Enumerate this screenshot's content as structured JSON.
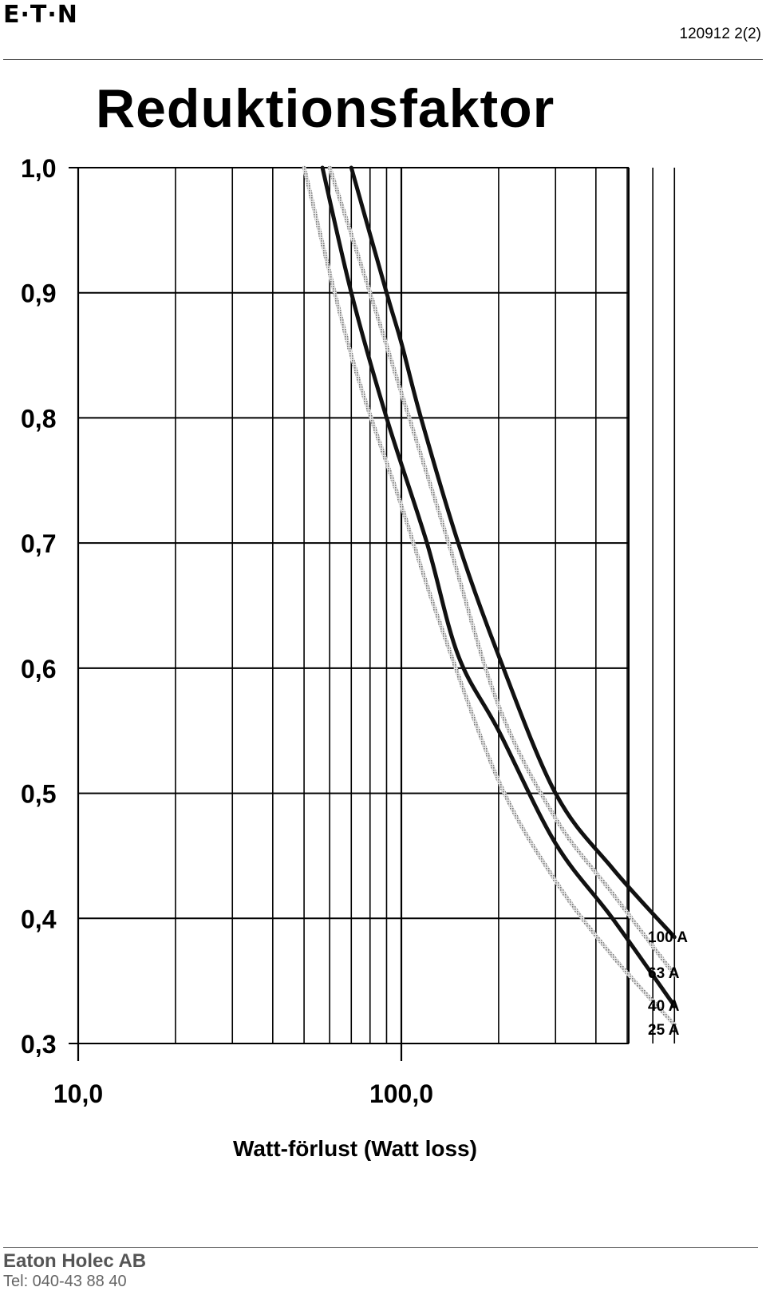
{
  "header": {
    "logo_text": "E∙T∙N",
    "document_number": "120912 2(2)"
  },
  "footer": {
    "company": "Eaton Holec AB",
    "phone": "Tel: 040-43 88 40"
  },
  "chart_data": {
    "type": "line",
    "title": "Reduktionsfaktor",
    "xlabel": "Watt-förlust (Watt loss)",
    "ylabel": "",
    "x_scale": "log",
    "xlim": [
      10,
      700
    ],
    "ylim": [
      0.3,
      1.0
    ],
    "x_ticks": [
      10,
      100
    ],
    "x_tick_labels": [
      "10,0",
      "100,0"
    ],
    "y_ticks": [
      1.0,
      0.9,
      0.8,
      0.7,
      0.6,
      0.5,
      0.4,
      0.3
    ],
    "y_tick_labels": [
      "1,0",
      "0,9",
      "0,8",
      "0,7",
      "0,6",
      "0,5",
      "0,4",
      "0,3"
    ],
    "grid": true,
    "legend_placement": "right (labels at line ends)",
    "series": [
      {
        "name": "100 A",
        "color": "#111111",
        "style": "solid",
        "x": [
          70,
          90,
          100,
          115,
          150,
          200,
          300,
          450,
          700
        ],
        "y": [
          1.0,
          0.9,
          0.86,
          0.8,
          0.7,
          0.61,
          0.5,
          0.44,
          0.385
        ]
      },
      {
        "name": "63 A",
        "color": "#9a9a9a",
        "style": "dotted",
        "x": [
          60,
          80,
          100,
          140,
          200,
          300,
          450,
          700
        ],
        "y": [
          1.0,
          0.9,
          0.82,
          0.7,
          0.57,
          0.48,
          0.42,
          0.355
        ]
      },
      {
        "name": "40 A",
        "color": "#111111",
        "style": "solid",
        "x": [
          57,
          70,
          90,
          120,
          150,
          200,
          300,
          450,
          700
        ],
        "y": [
          1.0,
          0.9,
          0.8,
          0.7,
          0.61,
          0.55,
          0.46,
          0.4,
          0.33
        ]
      },
      {
        "name": "25 A",
        "color": "#a8a8a8",
        "style": "dotted",
        "x": [
          50,
          70,
          100,
          130,
          200,
          300,
          450,
          700
        ],
        "y": [
          1.0,
          0.85,
          0.73,
          0.64,
          0.51,
          0.43,
          0.37,
          0.315
        ]
      }
    ]
  }
}
